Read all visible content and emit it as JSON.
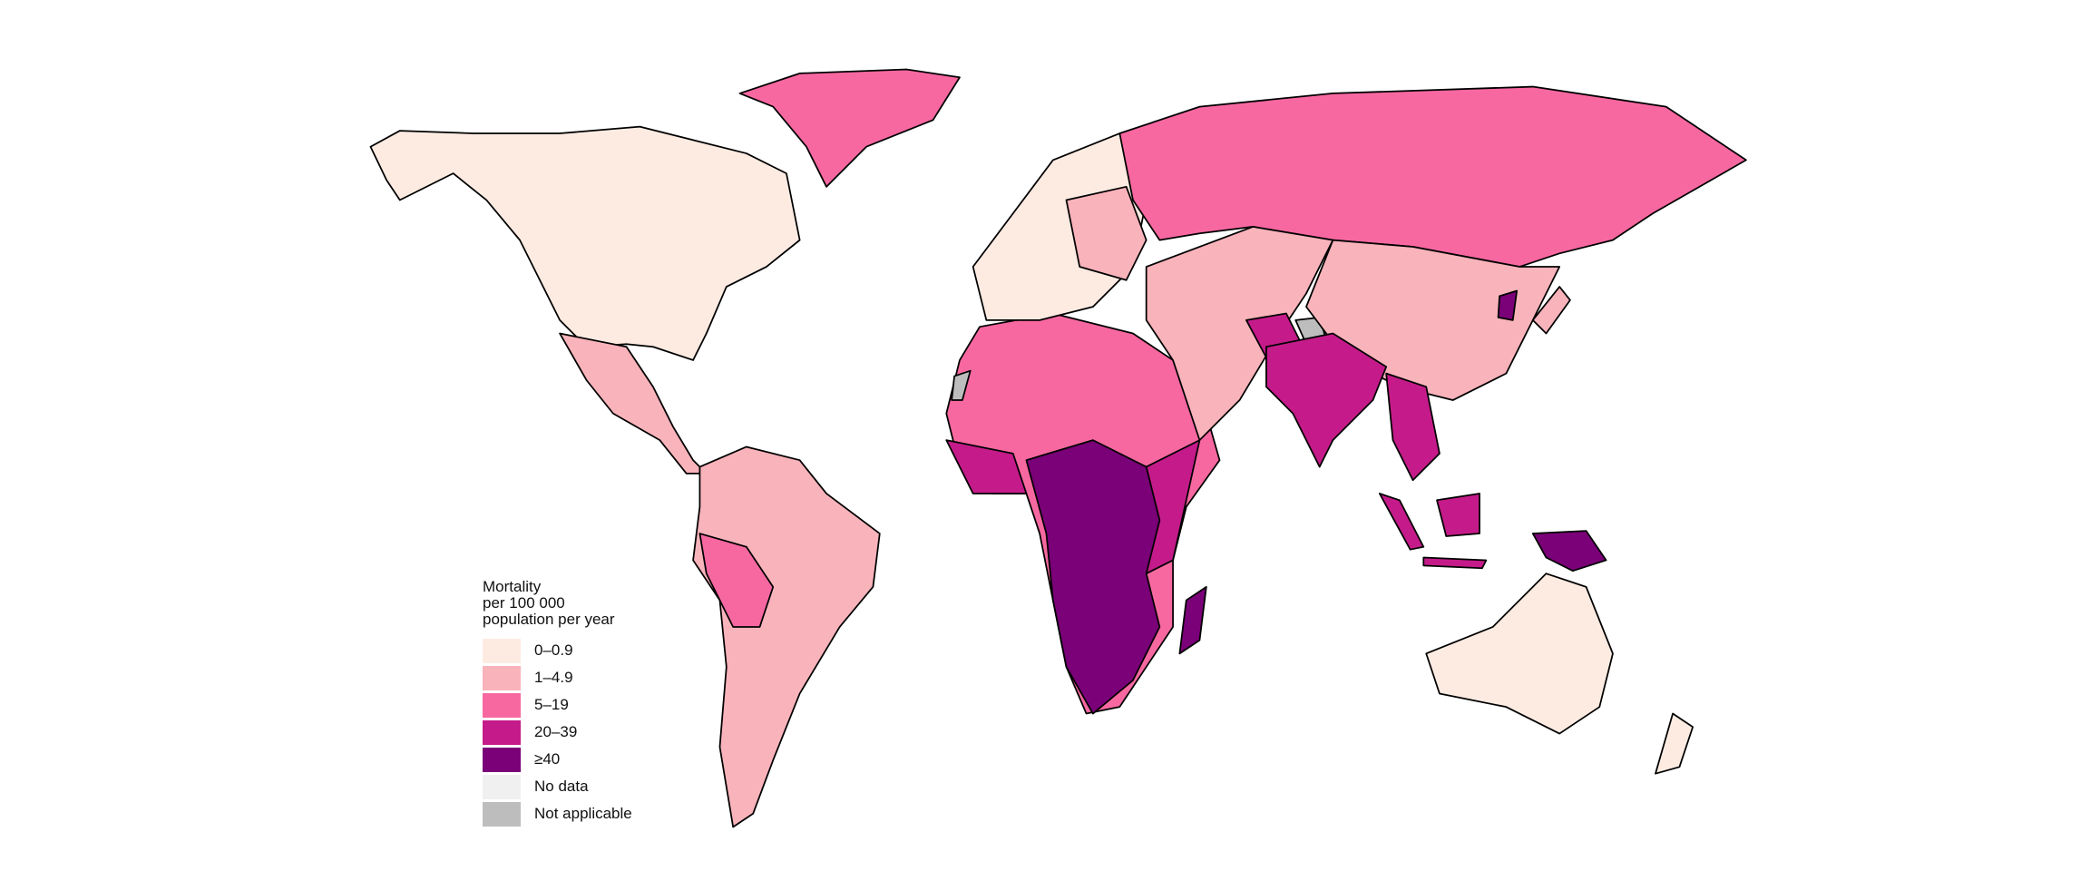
{
  "legend": {
    "title": "Mortality\nper 100 000\npopulation per year",
    "items": [
      {
        "label": "0–0.9",
        "color": "#fdebe2"
      },
      {
        "label": "1–4.9",
        "color": "#f9b3bb"
      },
      {
        "label": "5–19",
        "color": "#f768a1"
      },
      {
        "label": "20–39",
        "color": "#c51b8a"
      },
      {
        "label": "≥40",
        "color": "#7a0177"
      },
      {
        "label": "No data",
        "color": "#f0f0f0"
      },
      {
        "label": "Not applicable",
        "color": "#bdbdbd"
      }
    ]
  }
}
